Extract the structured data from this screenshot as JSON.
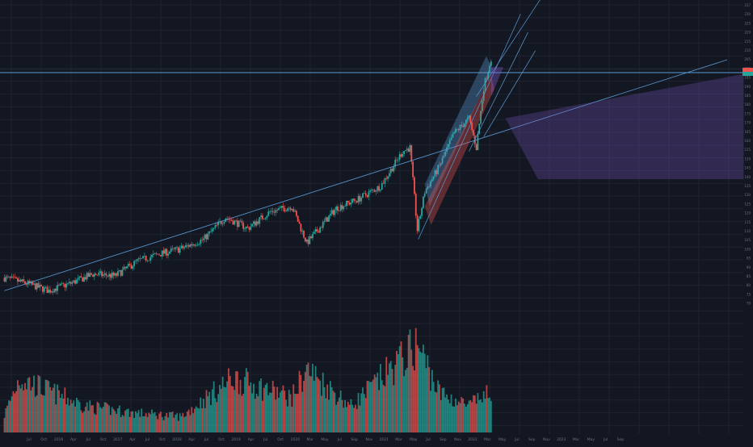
{
  "theme": {
    "background": "#131722",
    "grid": "#1f2330",
    "up": "#26a69a",
    "down": "#ef5350",
    "trendline": "#5b9bd5",
    "projection": "#7e57c2",
    "axis_text": "#6b7280"
  },
  "chart_data": {
    "type": "candlestick",
    "title": "",
    "xlabel": "",
    "ylabel": "",
    "ylim": [
      70,
      240
    ],
    "grid": true,
    "price_axis_ticks": [
      "237",
      "230",
      "225",
      "220",
      "215",
      "210",
      "205",
      "200",
      "195",
      "190",
      "185",
      "180",
      "175",
      "170",
      "165",
      "160",
      "155",
      "150",
      "145",
      "140",
      "135",
      "130",
      "125",
      "120",
      "115",
      "110",
      "105",
      "100",
      "95",
      "90",
      "85",
      "80",
      "75",
      "70"
    ],
    "time_axis_labels": [
      "Jul",
      "Oct",
      "2016",
      "Apr",
      "Jul",
      "Oct",
      "2017",
      "Apr",
      "Jul",
      "Oct",
      "2018",
      "Apr",
      "Jul",
      "Oct",
      "2019",
      "Apr",
      "Jul",
      "Oct",
      "2020",
      "Mar",
      "May",
      "Jul",
      "Sep",
      "Nov",
      "2021",
      "Mar",
      "May",
      "Jul",
      "Sep",
      "Nov",
      "2022",
      "Mar",
      "May",
      "Jul",
      "Sep",
      "Nov",
      "2023",
      "Mar",
      "May",
      "Jul",
      "Sep"
    ],
    "series": [
      {
        "kind": "price",
        "points": [
          {
            "date": "2015-07",
            "close": 91
          },
          {
            "date": "2015-10",
            "close": 88
          },
          {
            "date": "2016-01",
            "close": 84
          },
          {
            "date": "2016-04",
            "close": 88
          },
          {
            "date": "2016-07",
            "close": 93
          },
          {
            "date": "2016-10",
            "close": 92
          },
          {
            "date": "2017-01",
            "close": 100
          },
          {
            "date": "2017-04",
            "close": 104
          },
          {
            "date": "2017-07",
            "close": 107
          },
          {
            "date": "2017-10",
            "close": 112
          },
          {
            "date": "2018-01",
            "close": 124
          },
          {
            "date": "2018-04",
            "close": 118
          },
          {
            "date": "2018-07",
            "close": 127
          },
          {
            "date": "2018-10",
            "close": 130
          },
          {
            "date": "2018-12",
            "close": 110
          },
          {
            "date": "2019-04",
            "close": 129
          },
          {
            "date": "2019-07",
            "close": 134
          },
          {
            "date": "2019-10",
            "close": 141
          },
          {
            "date": "2020-01",
            "close": 160
          },
          {
            "date": "2020-02",
            "close": 162
          },
          {
            "date": "2020-03",
            "close": 117
          },
          {
            "date": "2020-04",
            "close": 138
          },
          {
            "date": "2020-06",
            "close": 152
          },
          {
            "date": "2020-08",
            "close": 170
          },
          {
            "date": "2020-10",
            "close": 178
          },
          {
            "date": "2020-11",
            "close": 162
          },
          {
            "date": "2020-12",
            "close": 195
          },
          {
            "date": "2021-01",
            "close": 211
          }
        ]
      },
      {
        "kind": "volume",
        "unit": "relative",
        "points": [
          {
            "date": "2015-07",
            "value": 0.2
          },
          {
            "date": "2015-09",
            "value": 0.62
          },
          {
            "date": "2016-02",
            "value": 0.44
          },
          {
            "date": "2016-06",
            "value": 0.3
          },
          {
            "date": "2017-01",
            "value": 0.22
          },
          {
            "date": "2017-07",
            "value": 0.18
          },
          {
            "date": "2018-02",
            "value": 0.62
          },
          {
            "date": "2018-10",
            "value": 0.4
          },
          {
            "date": "2018-12",
            "value": 0.72
          },
          {
            "date": "2019-06",
            "value": 0.3
          },
          {
            "date": "2020-03",
            "value": 1.0
          },
          {
            "date": "2020-06",
            "value": 0.45
          },
          {
            "date": "2020-10",
            "value": 0.3
          },
          {
            "date": "2020-12",
            "value": 0.42
          }
        ]
      }
    ],
    "drawings": {
      "horizontal_level": 203,
      "long_trendline": {
        "from": {
          "date": "2015-07",
          "price": 84
        },
        "to": {
          "date": "2023-09",
          "price": 210
        }
      },
      "channel_label": ""
    }
  }
}
